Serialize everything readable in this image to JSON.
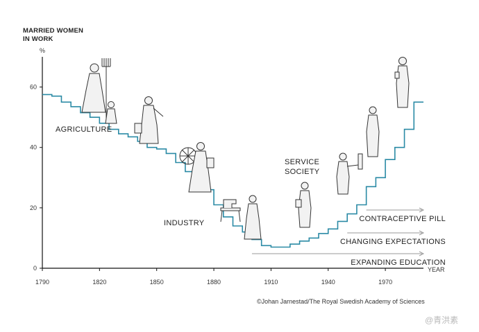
{
  "chart_data": {
    "type": "line",
    "ylabel_lines": [
      "MARRIED WOMEN",
      "IN WORK"
    ],
    "yunit": "%",
    "xlabel": "YEAR",
    "xlim": [
      1790,
      1990
    ],
    "ylim": [
      0,
      70
    ],
    "x_ticks": [
      "1790",
      "1820",
      "1850",
      "1880",
      "1910",
      "1940",
      "1970"
    ],
    "y_ticks": [
      "0",
      "20",
      "40",
      "60"
    ],
    "series_color": "#2a8aa5",
    "series": [
      {
        "x": [
          1790,
          1795,
          1800,
          1805,
          1810,
          1815,
          1820,
          1825,
          1830,
          1835,
          1840,
          1845,
          1850,
          1855,
          1860,
          1865,
          1870,
          1875,
          1880,
          1885,
          1890,
          1895,
          1900,
          1905,
          1910,
          1915,
          1920,
          1925,
          1930,
          1935,
          1940,
          1945,
          1950,
          1955,
          1960,
          1965,
          1970,
          1975,
          1980,
          1985
        ],
        "values": [
          57.5,
          57,
          55,
          53.5,
          51.5,
          50,
          48,
          46,
          44.5,
          43.5,
          42,
          40,
          39.5,
          38,
          35,
          32,
          29,
          26,
          21,
          17,
          14,
          12,
          9.5,
          7.5,
          7,
          7,
          8,
          9,
          10,
          11.5,
          13,
          15.5,
          18,
          21,
          27,
          30,
          36,
          40,
          46,
          55
        ]
      }
    ],
    "annotations": {
      "agriculture": "AGRICULTURE",
      "industry": "INDUSTRY",
      "service_line1": "SERVICE",
      "service_line2": "SOCIETY"
    },
    "factors": [
      {
        "label": "CONTRACEPTIVE PILL",
        "start_year": 1960
      },
      {
        "label": "CHANGING EXPECTATIONS",
        "start_year": 1950
      },
      {
        "label": "EXPANDING EDUCATION",
        "start_year": 1900
      }
    ]
  },
  "credit": "©Johan Jarnestad/The Royal Swedish Academy of Sciences",
  "watermark": "@青洪素"
}
